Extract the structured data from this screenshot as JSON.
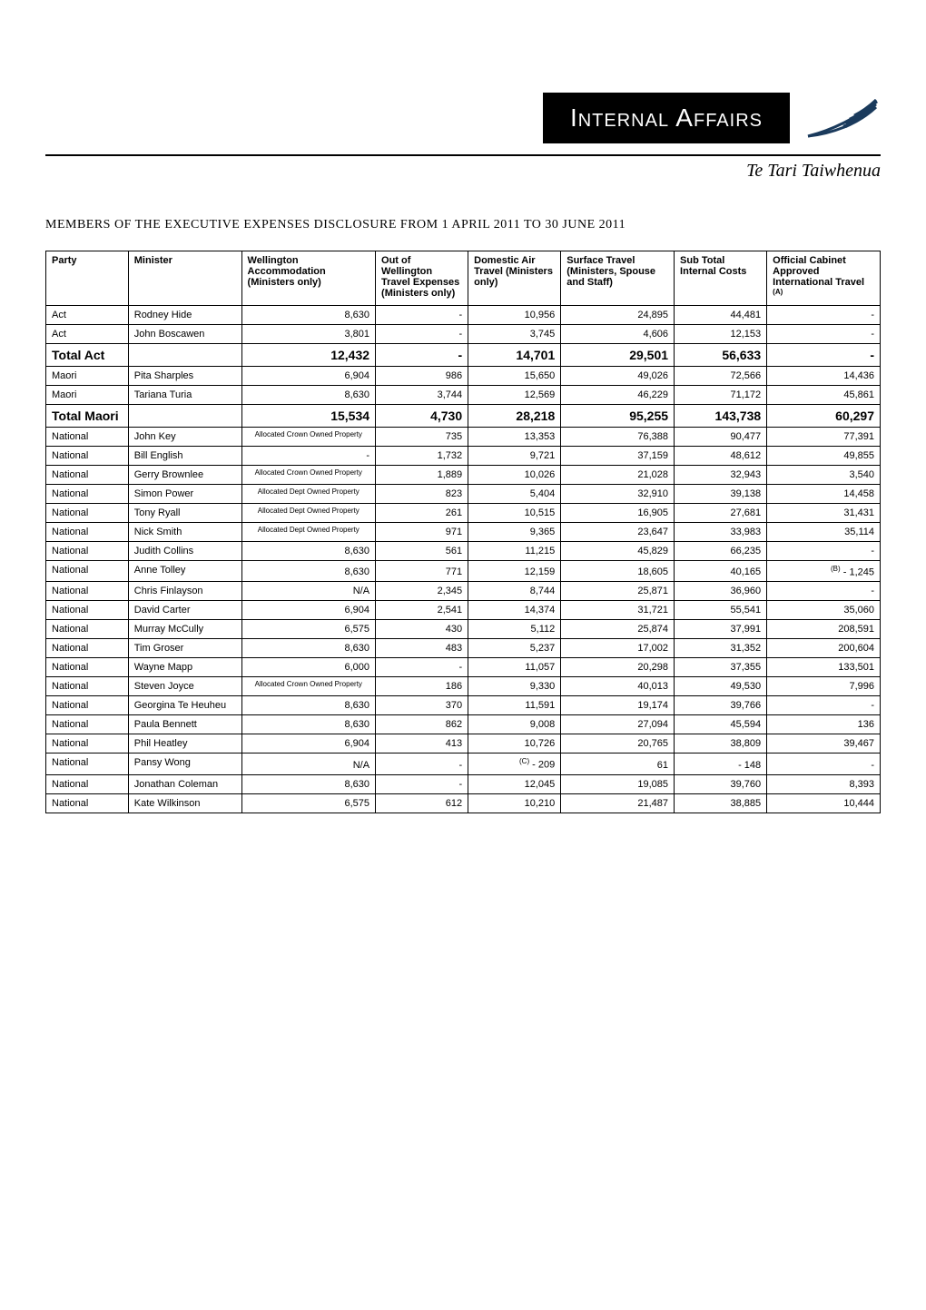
{
  "header": {
    "title_text": "Internal Affairs",
    "subtitle": "Te Tari Taiwhenua",
    "logo_bg": "#1a3a5c"
  },
  "page_title": "MEMBERS OF THE EXECUTIVE EXPENSES DISCLOSURE FROM 1 APRIL 2011 TO 30 JUNE 2011",
  "columns": {
    "party": "Party",
    "minister": "Minister",
    "accommodation": "Wellington Accommodation (Ministers only)",
    "out_of_wellington": "Out of Wellington Travel Expenses (Ministers only)",
    "air_travel": "Domestic Air Travel (Ministers only)",
    "surface": "Surface Travel (Ministers, Spouse and Staff)",
    "subtotal": "Sub Total Internal Costs",
    "international": "Official Cabinet Approved International Travel",
    "intl_sup": "(A)"
  },
  "rows": [
    {
      "party": "Act",
      "minister": "Rodney Hide",
      "accom": "8,630",
      "oow": "-",
      "air": "10,956",
      "surf": "24,895",
      "sub": "44,481",
      "intl": "-"
    },
    {
      "party": "Act",
      "minister": "John Boscawen",
      "accom": "3,801",
      "oow": "-",
      "air": "3,745",
      "surf": "4,606",
      "sub": "12,153",
      "intl": "-"
    },
    {
      "party": "Total Act",
      "minister": "",
      "accom": "12,432",
      "oow": "-",
      "air": "14,701",
      "surf": "29,501",
      "sub": "56,633",
      "intl": "-",
      "is_total": true
    },
    {
      "party": "Maori",
      "minister": "Pita Sharples",
      "accom": "6,904",
      "oow": "986",
      "air": "15,650",
      "surf": "49,026",
      "sub": "72,566",
      "intl": "14,436"
    },
    {
      "party": "Maori",
      "minister": "Tariana Turia",
      "accom": "8,630",
      "oow": "3,744",
      "air": "12,569",
      "surf": "46,229",
      "sub": "71,172",
      "intl": "45,861"
    },
    {
      "party": "Total Maori",
      "minister": "",
      "accom": "15,534",
      "oow": "4,730",
      "air": "28,218",
      "surf": "95,255",
      "sub": "143,738",
      "intl": "60,297",
      "is_total": true
    },
    {
      "party": "National",
      "minister": "John Key",
      "accom_note": "Allocated Crown Owned Property",
      "oow": "735",
      "air": "13,353",
      "surf": "76,388",
      "sub": "90,477",
      "intl": "77,391"
    },
    {
      "party": "National",
      "minister": "Bill English",
      "accom": "-",
      "oow": "1,732",
      "air": "9,721",
      "surf": "37,159",
      "sub": "48,612",
      "intl": "49,855"
    },
    {
      "party": "National",
      "minister": "Gerry Brownlee",
      "accom_note": "Allocated Crown Owned Property",
      "oow": "1,889",
      "air": "10,026",
      "surf": "21,028",
      "sub": "32,943",
      "intl": "3,540"
    },
    {
      "party": "National",
      "minister": "Simon Power",
      "accom_note": "Allocated Dept Owned Property",
      "oow": "823",
      "air": "5,404",
      "surf": "32,910",
      "sub": "39,138",
      "intl": "14,458"
    },
    {
      "party": "National",
      "minister": "Tony Ryall",
      "accom_note": "Allocated Dept Owned Property",
      "oow": "261",
      "air": "10,515",
      "surf": "16,905",
      "sub": "27,681",
      "intl": "31,431"
    },
    {
      "party": "National",
      "minister": "Nick Smith",
      "accom_note": "Allocated Dept Owned Property",
      "oow": "971",
      "air": "9,365",
      "surf": "23,647",
      "sub": "33,983",
      "intl": "35,114"
    },
    {
      "party": "National",
      "minister": "Judith Collins",
      "accom": "8,630",
      "oow": "561",
      "air": "11,215",
      "surf": "45,829",
      "sub": "66,235",
      "intl": "-"
    },
    {
      "party": "National",
      "minister": "Anne Tolley",
      "accom": "8,630",
      "oow": "771",
      "air": "12,159",
      "surf": "18,605",
      "sub": "40,165",
      "intl": "- 1,245",
      "intl_sup": "(B)"
    },
    {
      "party": "National",
      "minister": "Chris Finlayson",
      "accom": "N/A",
      "oow": "2,345",
      "air": "8,744",
      "surf": "25,871",
      "sub": "36,960",
      "intl": "-"
    },
    {
      "party": "National",
      "minister": "David Carter",
      "accom": "6,904",
      "oow": "2,541",
      "air": "14,374",
      "surf": "31,721",
      "sub": "55,541",
      "intl": "35,060"
    },
    {
      "party": "National",
      "minister": "Murray McCully",
      "accom": "6,575",
      "oow": "430",
      "air": "5,112",
      "surf": "25,874",
      "sub": "37,991",
      "intl": "208,591"
    },
    {
      "party": "National",
      "minister": "Tim  Groser",
      "accom": "8,630",
      "oow": "483",
      "air": "5,237",
      "surf": "17,002",
      "sub": "31,352",
      "intl": "200,604"
    },
    {
      "party": "National",
      "minister": "Wayne Mapp",
      "accom": "6,000",
      "oow": "-",
      "air": "11,057",
      "surf": "20,298",
      "sub": "37,355",
      "intl": "133,501"
    },
    {
      "party": "National",
      "minister": "Steven Joyce",
      "accom_note": "Allocated Crown Owned Property",
      "oow": "186",
      "air": "9,330",
      "surf": "40,013",
      "sub": "49,530",
      "intl": "7,996"
    },
    {
      "party": "National",
      "minister": "Georgina Te Heuheu",
      "accom": "8,630",
      "oow": "370",
      "air": "11,591",
      "surf": "19,174",
      "sub": "39,766",
      "intl": "-"
    },
    {
      "party": "National",
      "minister": "Paula Bennett",
      "accom": "8,630",
      "oow": "862",
      "air": "9,008",
      "surf": "27,094",
      "sub": "45,594",
      "intl": "136"
    },
    {
      "party": "National",
      "minister": "Phil Heatley",
      "accom": "6,904",
      "oow": "413",
      "air": "10,726",
      "surf": "20,765",
      "sub": "38,809",
      "intl": "39,467"
    },
    {
      "party": "National",
      "minister": "Pansy Wong",
      "accom": "N/A",
      "oow": "-",
      "air": "- 209",
      "air_sup": "(C)",
      "surf": "61",
      "sub": "- 148",
      "intl": "-"
    },
    {
      "party": "National",
      "minister": "Jonathan Coleman",
      "accom": "8,630",
      "oow": "-",
      "air": "12,045",
      "surf": "19,085",
      "sub": "39,760",
      "intl": "8,393"
    },
    {
      "party": "National",
      "minister": "Kate Wilkinson",
      "accom": "6,575",
      "oow": "612",
      "air": "10,210",
      "surf": "21,487",
      "sub": "38,885",
      "intl": "10,444"
    }
  ]
}
